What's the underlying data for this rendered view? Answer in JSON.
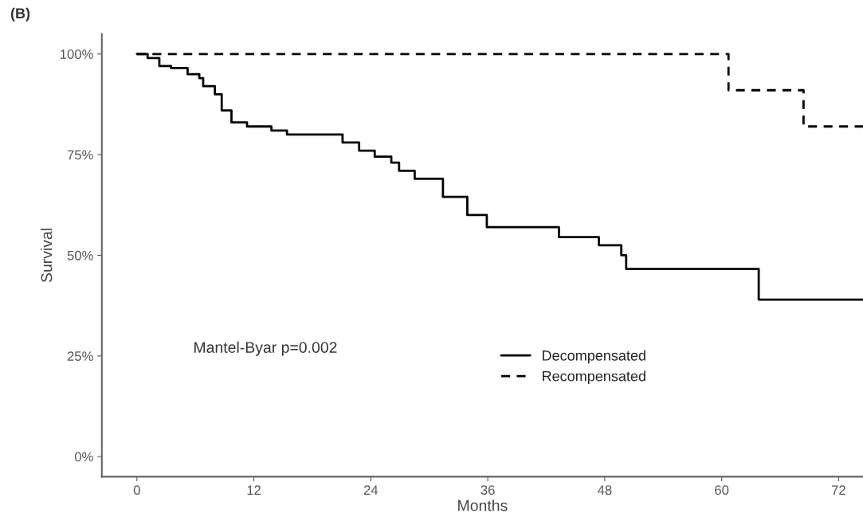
{
  "chart_data": {
    "type": "step",
    "title": "(B)",
    "xlabel": "Months",
    "ylabel": "Survival",
    "xlim": [
      -3.6,
      74.5
    ],
    "xticks": [
      0,
      12,
      24,
      36,
      48,
      60,
      72
    ],
    "ylim": [
      -5,
      105
    ],
    "yticks": [
      {
        "value": 0,
        "label": "0%"
      },
      {
        "value": 25,
        "label": "25%"
      },
      {
        "value": 50,
        "label": "50%"
      },
      {
        "value": 75,
        "label": "75%"
      },
      {
        "value": 100,
        "label": "100%"
      }
    ],
    "series": [
      {
        "name": "Decompensated",
        "color": "#000000",
        "line_style": "solid",
        "x": [
          0,
          1.1,
          2.3,
          3.5,
          5.2,
          6.4,
          6.8,
          8.0,
          8.7,
          9.7,
          11.3,
          13.8,
          15.4,
          21.1,
          22.8,
          24.4,
          26.1,
          26.9,
          28.5,
          31.4,
          33.9,
          35.9,
          43.3,
          47.4,
          49.7,
          50.2,
          63.8,
          74.5
        ],
        "values": [
          100,
          99,
          97,
          96.5,
          95,
          94,
          92,
          90,
          86,
          83,
          82,
          81,
          80,
          78,
          76,
          74.5,
          73,
          71,
          69,
          64.5,
          60,
          57,
          54.5,
          52.5,
          50,
          46.6,
          39,
          39
        ]
      },
      {
        "name": "Recompensated",
        "color": "#000000",
        "line_style": "dashed",
        "x": [
          0,
          60.7,
          68.4,
          74.5
        ],
        "values": [
          100,
          91,
          82,
          82
        ]
      }
    ],
    "legend": "bottom",
    "grid": false,
    "annotations": [
      "Mantel-Byar p=0.002"
    ]
  }
}
